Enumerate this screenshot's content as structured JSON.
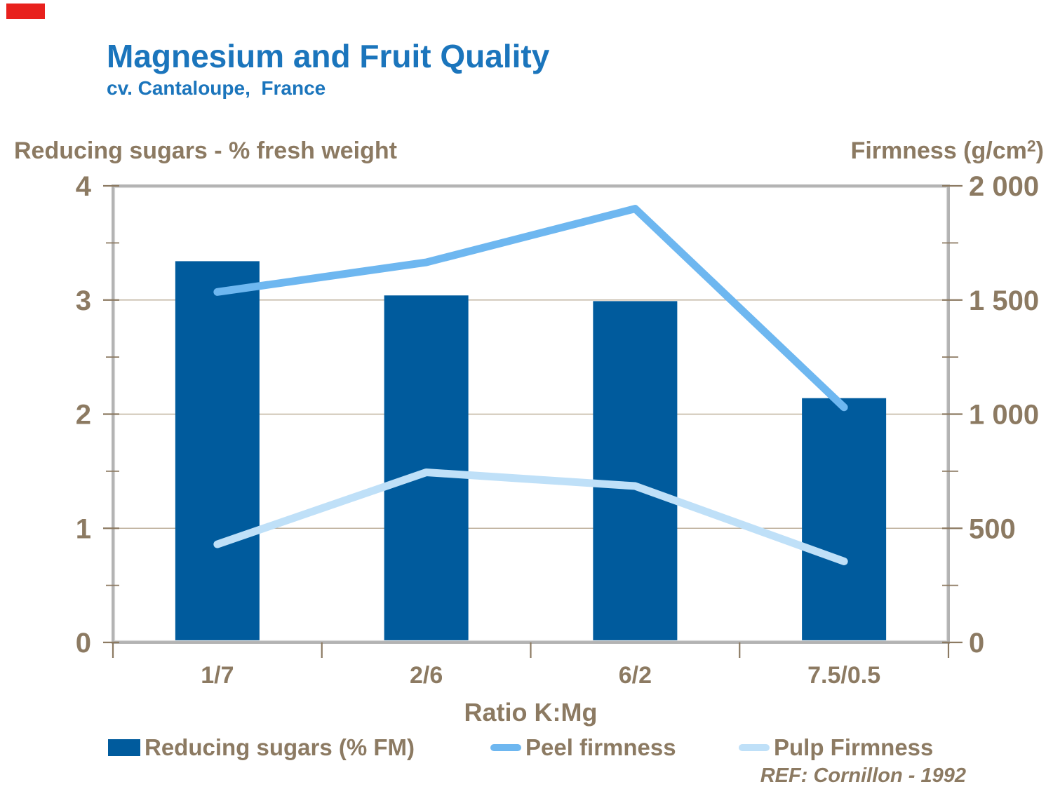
{
  "header": {
    "title": "Magnesium and Fruit Quality",
    "subtitle": "cv. Cantaloupe,  France"
  },
  "axes": {
    "left_header": "Reducing sugars - % fresh weight",
    "right_header": {
      "pre": "Firmness (g/cm",
      "sup": "2",
      "post": ")"
    }
  },
  "chart_data": {
    "type": "bar",
    "subtype": "combo bar + 2 lines, dual y-axes",
    "title": "Magnesium and Fruit Quality",
    "subtitle": "cv. Cantaloupe, France",
    "categories": [
      "1/7",
      "2/6",
      "6/2",
      "7.5/0.5"
    ],
    "xlabel": "Ratio K:Mg",
    "left_axis": {
      "label": "Reducing sugars - % fresh weight",
      "range": [
        0,
        4
      ],
      "ticks": [
        "4",
        "3",
        "2",
        "1",
        "0"
      ],
      "minor_step": 0.5
    },
    "right_axis": {
      "label": "Firmness (g/cm2)",
      "range": [
        0,
        2000
      ],
      "ticks": [
        "2 000",
        "1 500",
        "1 000",
        "500",
        "0"
      ],
      "minor_step": 250
    },
    "grid": "horizontal major gridlines only",
    "legend_position": "bottom",
    "series": [
      {
        "name": "Reducing sugars (% FM)",
        "type": "bar",
        "axis": "left",
        "color": "#005B9D",
        "values": [
          3.34,
          3.04,
          2.99,
          2.14
        ]
      },
      {
        "name": "Peel firmness",
        "type": "line",
        "axis": "right",
        "color": "#6EB7F0",
        "values": [
          1535,
          1665,
          1900,
          1030
        ]
      },
      {
        "name": "Pulp Firmness",
        "type": "line",
        "axis": "right",
        "color": "#BFE0F8",
        "values": [
          430,
          745,
          685,
          355
        ]
      }
    ],
    "annotation": "REF: Cornillon - 1992"
  },
  "footer": {
    "ref": "REF: Cornillon - 1992"
  },
  "colors": {
    "title_blue": "#1B75BC",
    "axis_text": "#8C7A62",
    "gridline": "#BFB19E",
    "plot_border": "#B3B3B3",
    "plot_border_light": "#D9D9D9",
    "bar_blue": "#005B9D",
    "peel_blue": "#6EB7F0",
    "pulp_blue": "#BFE0F8",
    "corner_red": "#E8211D",
    "background": "#FFFFFF"
  }
}
